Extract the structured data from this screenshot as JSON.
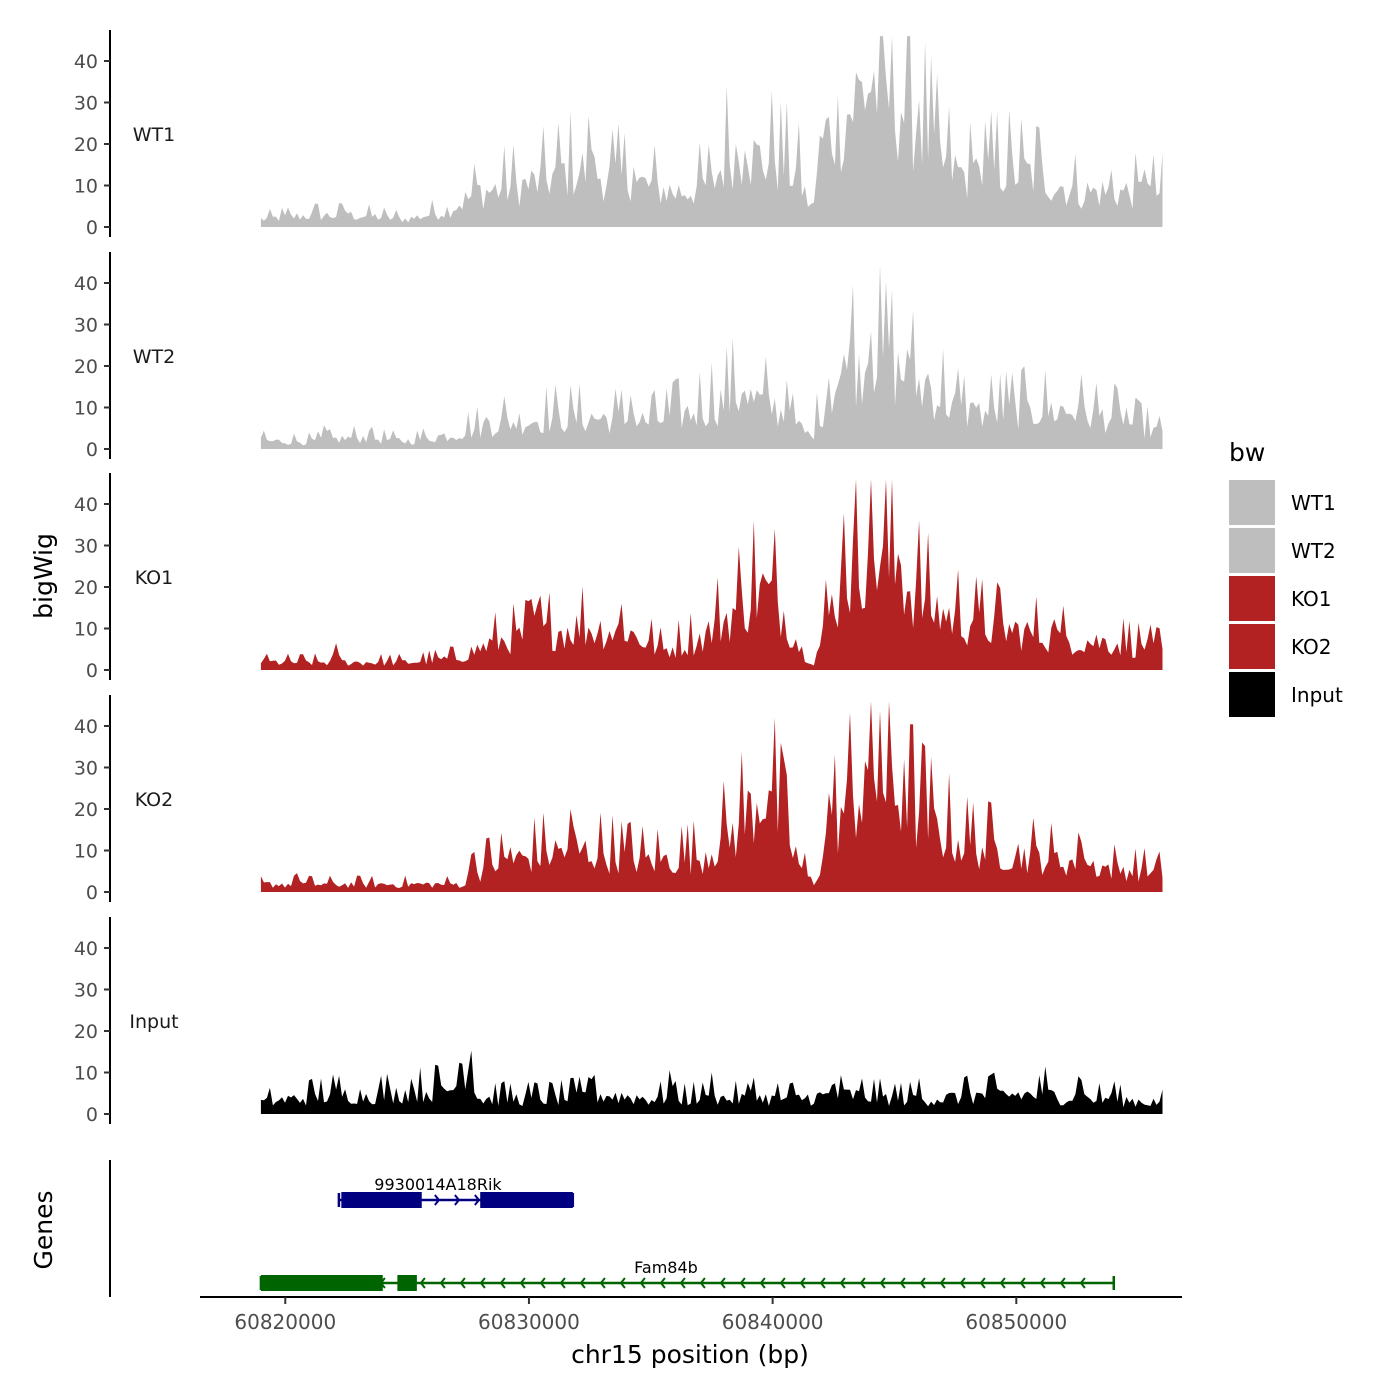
{
  "chart_data": {
    "type": "area",
    "y_axis_title": "bigWig",
    "x_axis_title": "chr15 position (bp)",
    "x_ticks": [
      60820000,
      60830000,
      60840000,
      60850000
    ],
    "x_tick_labels": [
      "60820000",
      "60830000",
      "60840000",
      "60850000"
    ],
    "xlim": [
      60816500,
      60856800
    ],
    "data_xrange": [
      60819000,
      60856000
    ],
    "y_ticks": [
      0,
      10,
      20,
      30,
      40
    ],
    "y_tick_labels": [
      "0",
      "10",
      "20",
      "30",
      "40"
    ],
    "ylim": [
      0,
      47
    ],
    "legend": {
      "title": "bw",
      "position": "right",
      "entries": [
        {
          "label": "WT1",
          "color": "#BEBEBE"
        },
        {
          "label": "WT2",
          "color": "#BEBEBE"
        },
        {
          "label": "KO1",
          "color": "#B22222"
        },
        {
          "label": "KO2",
          "color": "#B22222"
        },
        {
          "label": "Input",
          "color": "#000000"
        }
      ]
    },
    "series": [
      {
        "name": "WT1",
        "color": "#BEBEBE",
        "anchors": [
          [
            60819000,
            2
          ],
          [
            60821000,
            3
          ],
          [
            60823000,
            3
          ],
          [
            60825000,
            2
          ],
          [
            60826500,
            4
          ],
          [
            60828000,
            9
          ],
          [
            60830000,
            11
          ],
          [
            60832000,
            15
          ],
          [
            60834000,
            12
          ],
          [
            60836000,
            9
          ],
          [
            60837500,
            11
          ],
          [
            60838300,
            20
          ],
          [
            60839000,
            18
          ],
          [
            60840000,
            17
          ],
          [
            60841000,
            14
          ],
          [
            60841600,
            4
          ],
          [
            60842000,
            22
          ],
          [
            60843000,
            29
          ],
          [
            60844000,
            38
          ],
          [
            60845000,
            33
          ],
          [
            60846000,
            26
          ],
          [
            60847000,
            16
          ],
          [
            60848000,
            13
          ],
          [
            60849500,
            15
          ],
          [
            60851000,
            13
          ],
          [
            60852500,
            9
          ],
          [
            60854000,
            9
          ],
          [
            60856000,
            9
          ]
        ],
        "peaks": [
          [
            60822500,
            5
          ],
          [
            60827800,
            16
          ],
          [
            60831300,
            18
          ],
          [
            60832600,
            22
          ],
          [
            60834300,
            15
          ],
          [
            60838900,
            23
          ],
          [
            60840000,
            27
          ],
          [
            60843400,
            41
          ],
          [
            60844100,
            45
          ],
          [
            60844600,
            39
          ],
          [
            60845300,
            32
          ],
          [
            60846000,
            32
          ],
          [
            60848400,
            21
          ],
          [
            60851000,
            20
          ],
          [
            60853900,
            14
          ],
          [
            60855300,
            17
          ]
        ]
      },
      {
        "name": "WT2",
        "color": "#BEBEBE",
        "anchors": [
          [
            60819000,
            2
          ],
          [
            60821000,
            2
          ],
          [
            60823000,
            3
          ],
          [
            60825000,
            2
          ],
          [
            60827000,
            4
          ],
          [
            60829000,
            7
          ],
          [
            60831000,
            8
          ],
          [
            60833000,
            8
          ],
          [
            60835000,
            7
          ],
          [
            60837000,
            10
          ],
          [
            60838500,
            14
          ],
          [
            60840000,
            11
          ],
          [
            60841000,
            6
          ],
          [
            60841600,
            3
          ],
          [
            60842200,
            14
          ],
          [
            60843200,
            21
          ],
          [
            60844000,
            24
          ],
          [
            60845000,
            20
          ],
          [
            60846500,
            15
          ],
          [
            60848000,
            9
          ],
          [
            60850000,
            10
          ],
          [
            60852000,
            10
          ],
          [
            60854000,
            8
          ],
          [
            60856000,
            4
          ]
        ],
        "peaks": [
          [
            60819100,
            5
          ],
          [
            60821600,
            6
          ],
          [
            60823500,
            6
          ],
          [
            60828300,
            10
          ],
          [
            60834200,
            15
          ],
          [
            60838800,
            19
          ],
          [
            60840600,
            18
          ],
          [
            60842300,
            18
          ],
          [
            60843200,
            30
          ],
          [
            60844000,
            34
          ],
          [
            60844800,
            27
          ],
          [
            60845500,
            26
          ],
          [
            60846400,
            20
          ],
          [
            60848200,
            13
          ],
          [
            60850500,
            15
          ],
          [
            60852600,
            14
          ],
          [
            60854500,
            11
          ]
        ]
      },
      {
        "name": "KO1",
        "color": "#B22222",
        "anchors": [
          [
            60819000,
            2
          ],
          [
            60821000,
            2
          ],
          [
            60823000,
            2
          ],
          [
            60825000,
            2
          ],
          [
            60827000,
            3
          ],
          [
            60828500,
            7
          ],
          [
            60830000,
            9
          ],
          [
            60832000,
            11
          ],
          [
            60834000,
            10
          ],
          [
            60835500,
            5
          ],
          [
            60837000,
            8
          ],
          [
            60838600,
            16
          ],
          [
            60839500,
            21
          ],
          [
            60840300,
            17
          ],
          [
            60841200,
            5
          ],
          [
            60841700,
            2
          ],
          [
            60842500,
            18
          ],
          [
            60843500,
            28
          ],
          [
            60844300,
            30
          ],
          [
            60845000,
            25
          ],
          [
            60846500,
            16
          ],
          [
            60848000,
            12
          ],
          [
            60850000,
            10
          ],
          [
            60852000,
            8
          ],
          [
            60854000,
            7
          ],
          [
            60856000,
            5
          ]
        ],
        "peaks": [
          [
            60819100,
            3
          ],
          [
            60822100,
            7
          ],
          [
            60830300,
            20
          ],
          [
            60833800,
            16
          ],
          [
            60840000,
            24
          ],
          [
            60842900,
            43
          ],
          [
            60843900,
            30
          ],
          [
            60845200,
            37
          ],
          [
            60846300,
            19
          ],
          [
            60848200,
            14
          ],
          [
            60851600,
            15
          ],
          [
            60853600,
            10
          ],
          [
            60855400,
            8
          ]
        ]
      },
      {
        "name": "KO2",
        "color": "#B22222",
        "anchors": [
          [
            60819000,
            2
          ],
          [
            60821000,
            2
          ],
          [
            60823000,
            2
          ],
          [
            60825000,
            2
          ],
          [
            60826500,
            2
          ],
          [
            60827400,
            2
          ],
          [
            60828300,
            7
          ],
          [
            60830000,
            9
          ],
          [
            60831500,
            11
          ],
          [
            60833000,
            10
          ],
          [
            60835000,
            8
          ],
          [
            60837000,
            9
          ],
          [
            60838500,
            16
          ],
          [
            60839700,
            27
          ],
          [
            60840500,
            16
          ],
          [
            60841200,
            6
          ],
          [
            60841700,
            2
          ],
          [
            60842300,
            15
          ],
          [
            60843000,
            22
          ],
          [
            60844000,
            28
          ],
          [
            60845000,
            25
          ],
          [
            60846500,
            17
          ],
          [
            60848000,
            12
          ],
          [
            60850000,
            10
          ],
          [
            60852000,
            8
          ],
          [
            60854000,
            6
          ],
          [
            60856000,
            5
          ]
        ],
        "peaks": [
          [
            60820500,
            5
          ],
          [
            60827700,
            13
          ],
          [
            60829200,
            13
          ],
          [
            60831800,
            18
          ],
          [
            60839900,
            33
          ],
          [
            60842300,
            25
          ],
          [
            60843200,
            30
          ],
          [
            60843800,
            33
          ],
          [
            60844400,
            45
          ],
          [
            60845400,
            33
          ],
          [
            60846800,
            19
          ],
          [
            60849000,
            17
          ],
          [
            60852700,
            14
          ],
          [
            60855800,
            10
          ]
        ]
      },
      {
        "name": "Input",
        "color": "#000000",
        "anchors": [
          [
            60819000,
            3
          ],
          [
            60820500,
            4
          ],
          [
            60822000,
            5
          ],
          [
            60824000,
            5
          ],
          [
            60826000,
            6
          ],
          [
            60827300,
            7
          ],
          [
            60828000,
            4
          ],
          [
            60829500,
            4
          ],
          [
            60831000,
            4
          ],
          [
            60833000,
            5
          ],
          [
            60835000,
            4
          ],
          [
            60837000,
            4
          ],
          [
            60839000,
            4
          ],
          [
            60841000,
            4
          ],
          [
            60843000,
            5
          ],
          [
            60845000,
            4
          ],
          [
            60847000,
            4
          ],
          [
            60849000,
            5
          ],
          [
            60851000,
            5
          ],
          [
            60853000,
            4
          ],
          [
            60856000,
            3
          ]
        ],
        "peaks": [
          [
            60822200,
            8
          ],
          [
            60825200,
            10
          ],
          [
            60826200,
            10
          ],
          [
            60827200,
            17
          ],
          [
            60827600,
            18
          ],
          [
            60832500,
            12
          ],
          [
            60835800,
            12
          ],
          [
            60837500,
            10
          ],
          [
            60839200,
            10
          ],
          [
            60842500,
            10
          ],
          [
            60846000,
            9
          ],
          [
            60848000,
            10
          ],
          [
            60851200,
            12
          ],
          [
            60852600,
            12
          ],
          [
            60854000,
            9
          ]
        ]
      }
    ],
    "genes": {
      "track_title": "Genes",
      "items": [
        {
          "name": "9930014A18Rik",
          "strand": "+",
          "color": "#000080",
          "start": 60822200,
          "end": 60831800,
          "exons": [
            [
              60822300,
              60825600
            ],
            [
              60828000,
              60831800
            ]
          ]
        },
        {
          "name": "Fam84b",
          "strand": "-",
          "color": "#006400",
          "start": 60819000,
          "end": 60854000,
          "exons": [
            [
              60819000,
              60824000
            ],
            [
              60824600,
              60825400
            ]
          ]
        }
      ]
    }
  }
}
